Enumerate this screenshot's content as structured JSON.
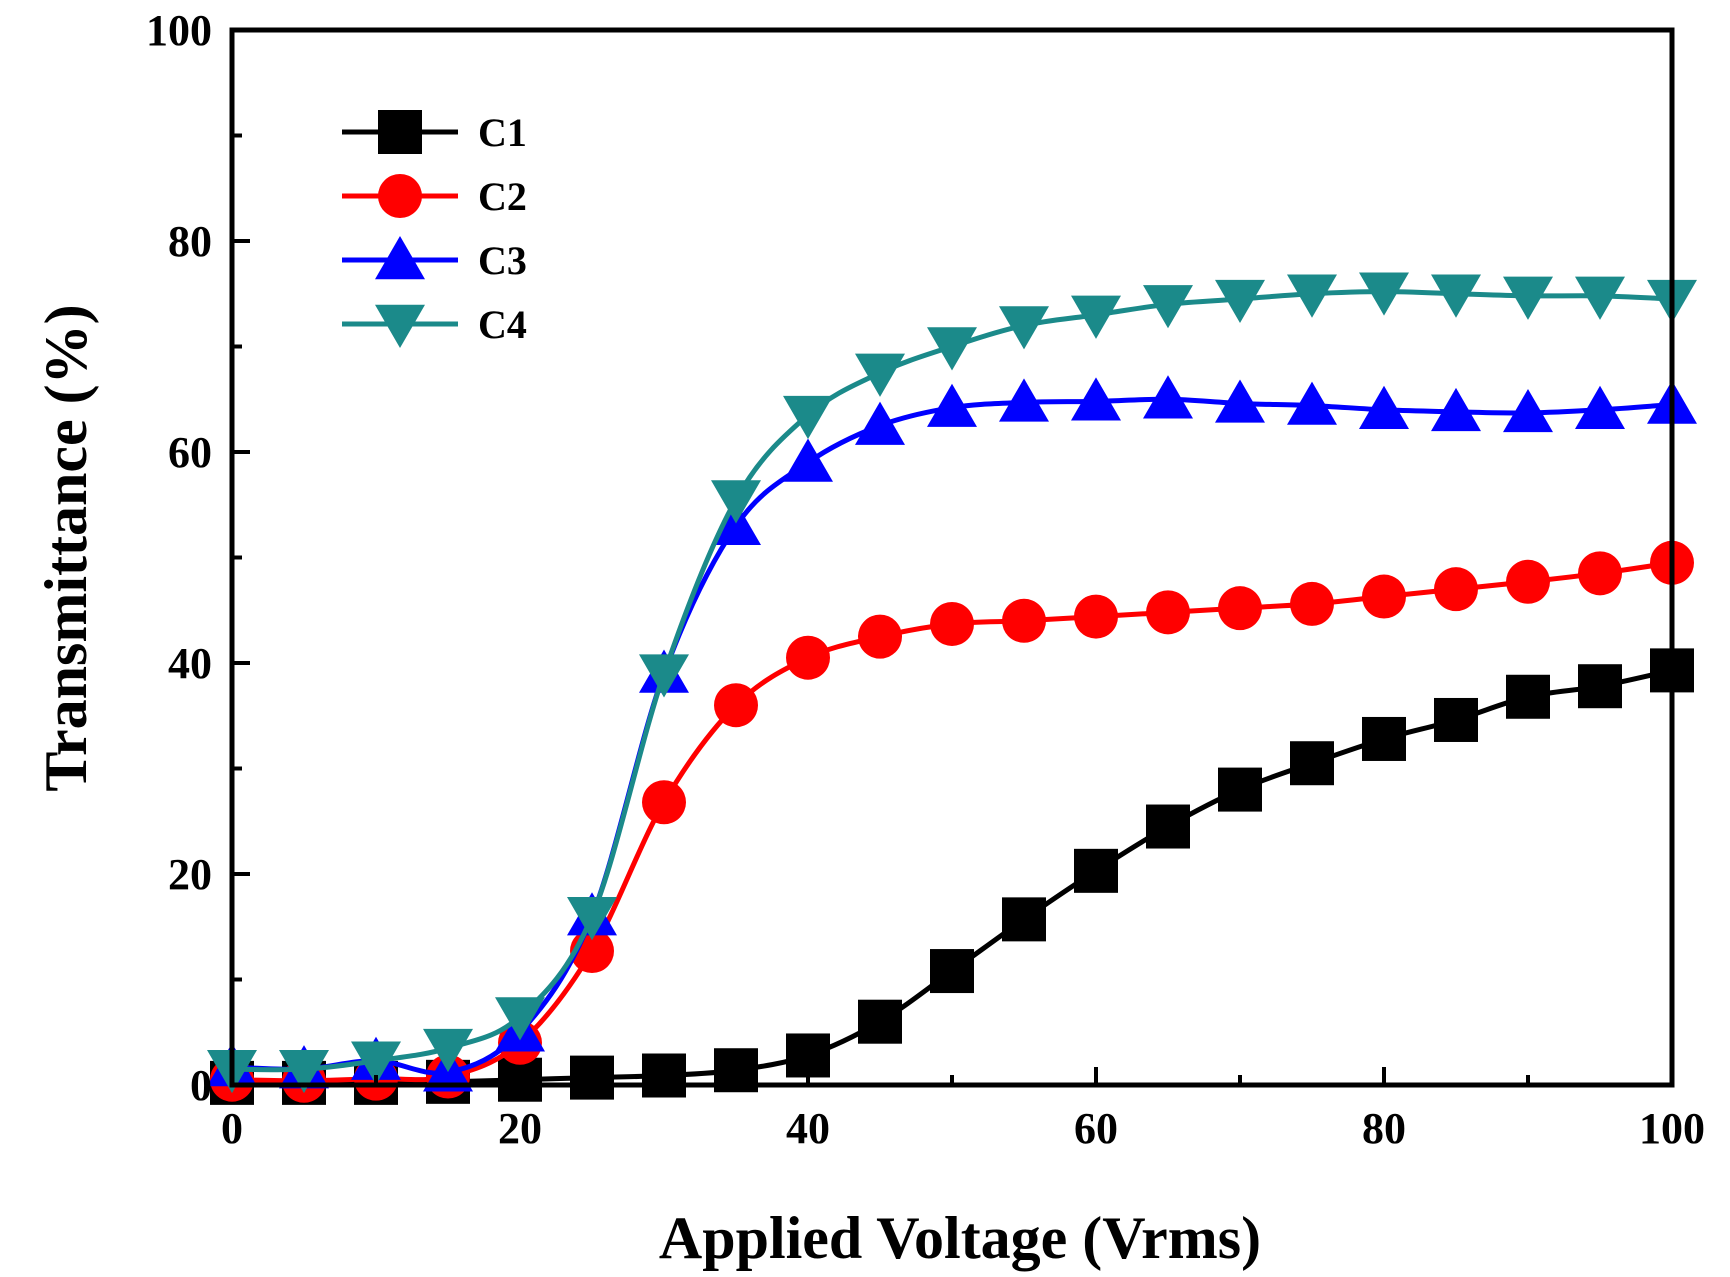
{
  "chart_data": {
    "type": "line",
    "title": "",
    "xlabel": "Applied Voltage (Vrms)",
    "ylabel": "Transmittance (%)",
    "xlim": [
      0,
      100
    ],
    "ylim": [
      0,
      100
    ],
    "x_major_ticks": [
      0,
      20,
      40,
      60,
      80,
      100
    ],
    "x_tick_labels": [
      "0",
      "20",
      "40",
      "60",
      "80",
      "100"
    ],
    "y_major_ticks": [
      0,
      20,
      40,
      60,
      80,
      100
    ],
    "y_tick_labels": [
      "0",
      "20",
      "40",
      "60",
      "80",
      "100"
    ],
    "x_minor_ticks": [
      10,
      30,
      50,
      70,
      90
    ],
    "y_minor_ticks": [
      10,
      30,
      50,
      70,
      90
    ],
    "grid": false,
    "legend_position": "top-left",
    "x": [
      0,
      5,
      10,
      15,
      20,
      25,
      30,
      35,
      40,
      45,
      50,
      55,
      60,
      65,
      70,
      75,
      80,
      85,
      90,
      95,
      100
    ],
    "series": [
      {
        "name": "C1",
        "color": "#000000",
        "marker": "square",
        "values": [
          0.2,
          0.2,
          0.2,
          0.3,
          0.5,
          0.7,
          0.9,
          1.4,
          2.8,
          6.0,
          10.8,
          15.7,
          20.3,
          24.5,
          28.0,
          30.5,
          32.8,
          34.6,
          36.8,
          37.8,
          39.3
        ]
      },
      {
        "name": "C2",
        "color": "#ff0000",
        "marker": "circle",
        "values": [
          0.5,
          0.4,
          0.6,
          0.8,
          4.0,
          12.7,
          26.8,
          36.0,
          40.5,
          42.5,
          43.7,
          44.0,
          44.4,
          44.8,
          45.2,
          45.6,
          46.3,
          47.0,
          47.7,
          48.5,
          49.5
        ]
      },
      {
        "name": "C3",
        "color": "#0000ff",
        "marker": "triangle-up",
        "values": [
          1.7,
          1.5,
          2.3,
          1.2,
          5.0,
          16.0,
          39.0,
          53.0,
          59.0,
          62.5,
          64.2,
          64.7,
          64.8,
          65.0,
          64.6,
          64.4,
          64.0,
          63.8,
          63.7,
          64.0,
          64.5
        ]
      },
      {
        "name": "C4",
        "color": "#1b8a8a",
        "marker": "triangle-down",
        "values": [
          1.5,
          1.5,
          2.3,
          3.5,
          6.5,
          16.0,
          39.0,
          55.5,
          63.5,
          67.5,
          70.0,
          72.0,
          73.0,
          74.0,
          74.5,
          75.0,
          75.2,
          75.0,
          74.8,
          74.8,
          74.5
        ]
      }
    ]
  }
}
